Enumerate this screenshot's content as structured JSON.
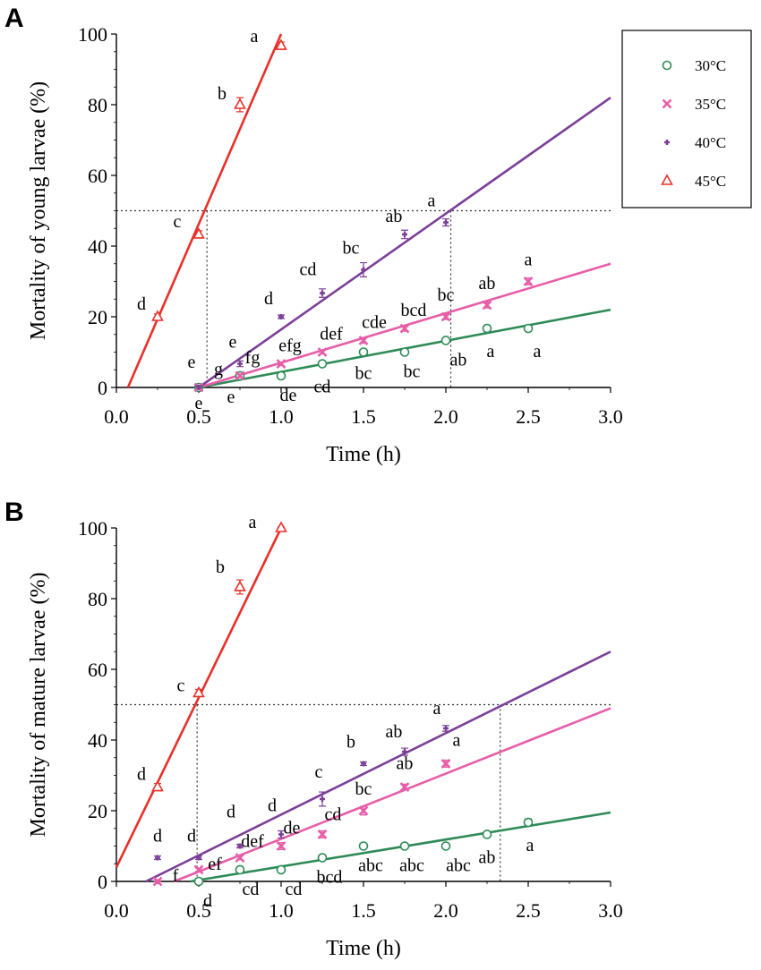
{
  "chart_data": [
    {
      "type": "scatter",
      "panel_label": "A",
      "xlabel": "Time (h)",
      "ylabel": "Mortality of young larvae  (%)",
      "xlim": [
        0,
        3.0
      ],
      "ylim": [
        0,
        100
      ],
      "xticks": [
        "0.0",
        "0.5",
        "1.0",
        "1.5",
        "2.0",
        "2.5",
        "3.0"
      ],
      "yticks": [
        "0",
        "20",
        "40",
        "60",
        "80",
        "100"
      ],
      "reference_lines": {
        "y": 50,
        "x_drop": [
          0.55,
          2.03
        ]
      },
      "series": [
        {
          "name": "30°C",
          "color": "#2e8b57",
          "marker": "circle",
          "points": [
            {
              "x": 0.5,
              "y": 0,
              "err": 0.5,
              "label": "e"
            },
            {
              "x": 0.75,
              "y": 3.3,
              "err": 0.5,
              "label": "e"
            },
            {
              "x": 1.0,
              "y": 3.3,
              "err": 0.5,
              "label": "de"
            },
            {
              "x": 1.25,
              "y": 6.7,
              "err": 0.8,
              "label": "cd"
            },
            {
              "x": 1.5,
              "y": 10,
              "err": 0.5,
              "label": "bc"
            },
            {
              "x": 1.75,
              "y": 10,
              "err": 0.5,
              "label": "bc"
            },
            {
              "x": 2.0,
              "y": 13.3,
              "err": 0.5,
              "label": "ab"
            },
            {
              "x": 2.25,
              "y": 16.7,
              "err": 0.8,
              "label": "a"
            },
            {
              "x": 2.5,
              "y": 16.7,
              "err": 0.8,
              "label": "a"
            }
          ],
          "fit": [
            [
              0.5,
              0
            ],
            [
              3.0,
              22
            ]
          ]
        },
        {
          "name": "35°C",
          "color": "#e75ea8",
          "marker": "x",
          "points": [
            {
              "x": 0.5,
              "y": 0,
              "err": 0.5,
              "label": "g"
            },
            {
              "x": 0.75,
              "y": 3.3,
              "err": 0.5,
              "label": "fg"
            },
            {
              "x": 1.0,
              "y": 6.7,
              "err": 0.5,
              "label": "efg"
            },
            {
              "x": 1.25,
              "y": 10,
              "err": 0.5,
              "label": "def"
            },
            {
              "x": 1.5,
              "y": 13.3,
              "err": 0.8,
              "label": "cde"
            },
            {
              "x": 1.75,
              "y": 16.7,
              "err": 0.8,
              "label": "bcd"
            },
            {
              "x": 2.0,
              "y": 20,
              "err": 0.8,
              "label": "bc"
            },
            {
              "x": 2.25,
              "y": 23.3,
              "err": 0.8,
              "label": "ab"
            },
            {
              "x": 2.5,
              "y": 30,
              "err": 1.0,
              "label": "a"
            }
          ],
          "fit": [
            [
              0.5,
              0
            ],
            [
              3.0,
              35
            ]
          ]
        },
        {
          "name": "40°C",
          "color": "#7b3f98",
          "marker": "plus",
          "points": [
            {
              "x": 0.5,
              "y": 0,
              "err": 0.5,
              "label": "e"
            },
            {
              "x": 0.75,
              "y": 6.7,
              "err": 0.8,
              "label": "e"
            },
            {
              "x": 1.0,
              "y": 20,
              "err": 0.5,
              "label": "d"
            },
            {
              "x": 1.25,
              "y": 26.7,
              "err": 1.2,
              "label": "cd"
            },
            {
              "x": 1.5,
              "y": 33.3,
              "err": 2.0,
              "label": "bc"
            },
            {
              "x": 1.75,
              "y": 43.3,
              "err": 1.2,
              "label": "ab"
            },
            {
              "x": 2.0,
              "y": 46.7,
              "err": 1.0,
              "label": "a"
            }
          ],
          "fit": [
            [
              0.5,
              0
            ],
            [
              3.0,
              82
            ]
          ]
        },
        {
          "name": "45°C",
          "color": "#e8302a",
          "marker": "triangle",
          "points": [
            {
              "x": 0.25,
              "y": 20,
              "err": 0.8,
              "label": "d"
            },
            {
              "x": 0.5,
              "y": 43.3,
              "err": 1.0,
              "label": "c"
            },
            {
              "x": 0.75,
              "y": 80,
              "err": 2.0,
              "label": "b"
            },
            {
              "x": 1.0,
              "y": 96.7,
              "err": 1.0,
              "label": "a"
            }
          ],
          "fit": [
            [
              0.07,
              0
            ],
            [
              1.0,
              100
            ]
          ]
        }
      ]
    },
    {
      "type": "scatter",
      "panel_label": "B",
      "xlabel": "Time (h)",
      "ylabel": "Mortality of mature larvae (%)",
      "xlim": [
        0,
        3.0
      ],
      "ylim": [
        0,
        100
      ],
      "xticks": [
        "0.0",
        "0.5",
        "1.0",
        "1.5",
        "2.0",
        "2.5",
        "3.0"
      ],
      "yticks": [
        "0",
        "20",
        "40",
        "60",
        "80",
        "100"
      ],
      "reference_lines": {
        "y": 50,
        "x_drop": [
          0.49,
          2.33
        ]
      },
      "series": [
        {
          "name": "30°C",
          "color": "#2e8b57",
          "marker": "circle",
          "points": [
            {
              "x": 0.5,
              "y": 0,
              "err": 0.5,
              "label": "d"
            },
            {
              "x": 0.75,
              "y": 3.3,
              "err": 0.5,
              "label": "cd"
            },
            {
              "x": 1.0,
              "y": 3.3,
              "err": 0.5,
              "label": "cd"
            },
            {
              "x": 1.25,
              "y": 6.7,
              "err": 0.5,
              "label": "bcd"
            },
            {
              "x": 1.5,
              "y": 10,
              "err": 0.5,
              "label": "abc"
            },
            {
              "x": 1.75,
              "y": 10,
              "err": 0.5,
              "label": "abc"
            },
            {
              "x": 2.0,
              "y": 10,
              "err": 0.5,
              "label": "abc"
            },
            {
              "x": 2.25,
              "y": 13.3,
              "err": 0.5,
              "label": "ab"
            },
            {
              "x": 2.5,
              "y": 16.7,
              "err": 1.0,
              "label": "a"
            }
          ],
          "fit": [
            [
              0.45,
              0
            ],
            [
              3.0,
              19.5
            ]
          ]
        },
        {
          "name": "35°C",
          "color": "#e75ea8",
          "marker": "x",
          "points": [
            {
              "x": 0.25,
              "y": 0,
              "err": 0.5,
              "label": "f"
            },
            {
              "x": 0.5,
              "y": 3.3,
              "err": 0.5,
              "label": "ef"
            },
            {
              "x": 0.75,
              "y": 6.7,
              "err": 0.5,
              "label": "def"
            },
            {
              "x": 1.0,
              "y": 10,
              "err": 1.0,
              "label": "de"
            },
            {
              "x": 1.25,
              "y": 13.3,
              "err": 1.0,
              "label": "cd"
            },
            {
              "x": 1.5,
              "y": 20,
              "err": 1.2,
              "label": "bc"
            },
            {
              "x": 1.75,
              "y": 26.7,
              "err": 0.8,
              "label": "ab"
            },
            {
              "x": 2.0,
              "y": 33.3,
              "err": 1.0,
              "label": "a"
            }
          ],
          "fit": [
            [
              0.35,
              0
            ],
            [
              3.0,
              49
            ]
          ]
        },
        {
          "name": "40°C",
          "color": "#7b3f98",
          "marker": "plus",
          "points": [
            {
              "x": 0.25,
              "y": 6.7,
              "err": 0.5,
              "label": "d"
            },
            {
              "x": 0.5,
              "y": 6.7,
              "err": 0.5,
              "label": "d"
            },
            {
              "x": 0.75,
              "y": 10,
              "err": 0.5,
              "label": "d"
            },
            {
              "x": 1.0,
              "y": 13.3,
              "err": 1.0,
              "label": "d"
            },
            {
              "x": 1.25,
              "y": 23.3,
              "err": 2.0,
              "label": "c"
            },
            {
              "x": 1.5,
              "y": 33.3,
              "err": 0.5,
              "label": "b"
            },
            {
              "x": 1.75,
              "y": 36.7,
              "err": 1.0,
              "label": "ab"
            },
            {
              "x": 2.0,
              "y": 43.3,
              "err": 0.8,
              "label": "a"
            }
          ],
          "fit": [
            [
              0.18,
              0
            ],
            [
              3.0,
              65
            ]
          ]
        },
        {
          "name": "45°C",
          "color": "#e8302a",
          "marker": "triangle",
          "points": [
            {
              "x": 0.25,
              "y": 26.7,
              "err": 1.0,
              "label": "d"
            },
            {
              "x": 0.5,
              "y": 53.3,
              "err": 1.0,
              "label": "c"
            },
            {
              "x": 0.75,
              "y": 83.3,
              "err": 2.0,
              "label": "b"
            },
            {
              "x": 1.0,
              "y": 100,
              "err": 0.3,
              "label": "a"
            }
          ],
          "fit": [
            [
              0.0,
              4
            ],
            [
              1.0,
              100
            ]
          ]
        }
      ]
    }
  ],
  "legend": [
    {
      "label": "30°C",
      "marker": "circle",
      "color": "#2e8b57"
    },
    {
      "label": "35°C",
      "marker": "x",
      "color": "#e75ea8"
    },
    {
      "label": "40°C",
      "marker": "plus",
      "color": "#7b3f98"
    },
    {
      "label": "45°C",
      "marker": "triangle",
      "color": "#e8302a"
    }
  ]
}
